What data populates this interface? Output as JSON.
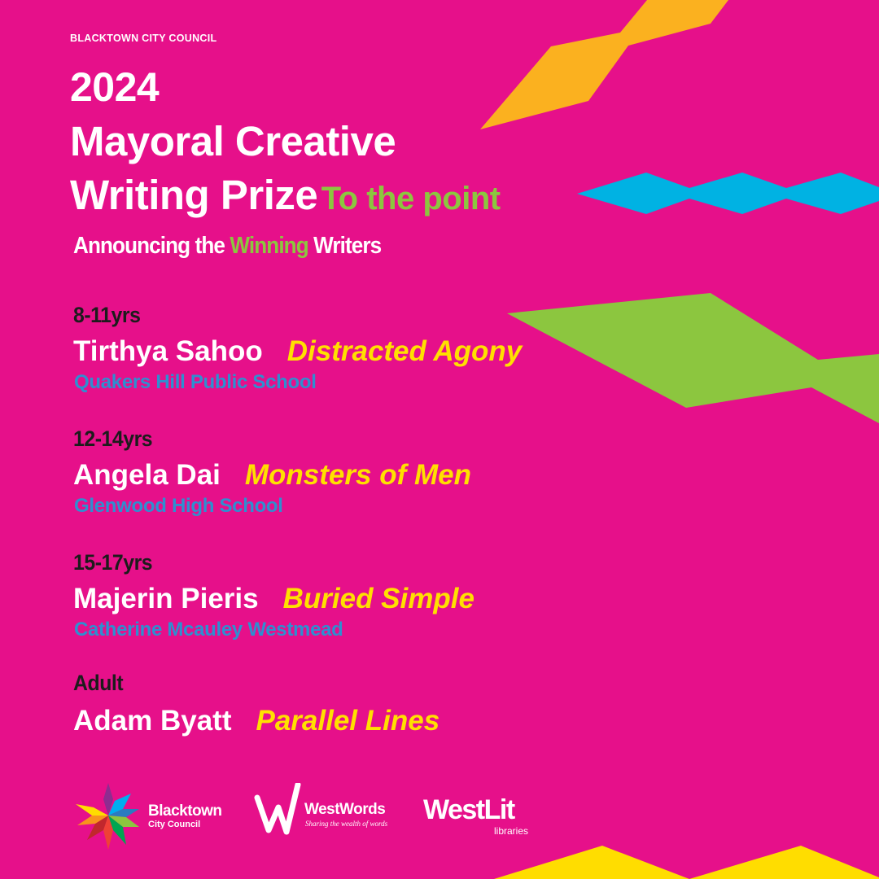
{
  "header": {
    "organisation": "BLACKTOWN CITY COUNCIL",
    "year": "2024",
    "title_line1": "Mayoral Creative",
    "title_line2": "Writing Prize",
    "theme": "To the point",
    "subtitle_pre": "Announcing the",
    "subtitle_highlight": "Winning",
    "subtitle_post": "Writers"
  },
  "winners": [
    {
      "category": "8-11yrs",
      "name": "Tirthya Sahoo",
      "title": "Distracted Agony",
      "school": "Quakers Hill Public School"
    },
    {
      "category": "12-14yrs",
      "name": "Angela Dai",
      "title": "Monsters of Men",
      "school": "Glenwood High School"
    },
    {
      "category": "15-17yrs",
      "name": "Majerin Pieris",
      "title": "Buried Simple",
      "school": "Catherine Mcauley Westmead"
    },
    {
      "category": "Adult",
      "name": "Adam Byatt",
      "title": "Parallel Lines"
    }
  ],
  "logos": {
    "blacktown": {
      "line1": "Blacktown",
      "line2": "City Council"
    },
    "westwords": {
      "name": "WestWords",
      "tagline": "Sharing the wealth of words"
    },
    "westlit": {
      "name": "WestLit",
      "sub": "libraries"
    }
  },
  "colors": {
    "background": "#E6108A",
    "accent_green": "#8CC63F",
    "title_yellow": "#FFE000",
    "school_blue": "#2E8FD0",
    "orange": "#FBB11F",
    "cyan": "#00B2E3"
  }
}
